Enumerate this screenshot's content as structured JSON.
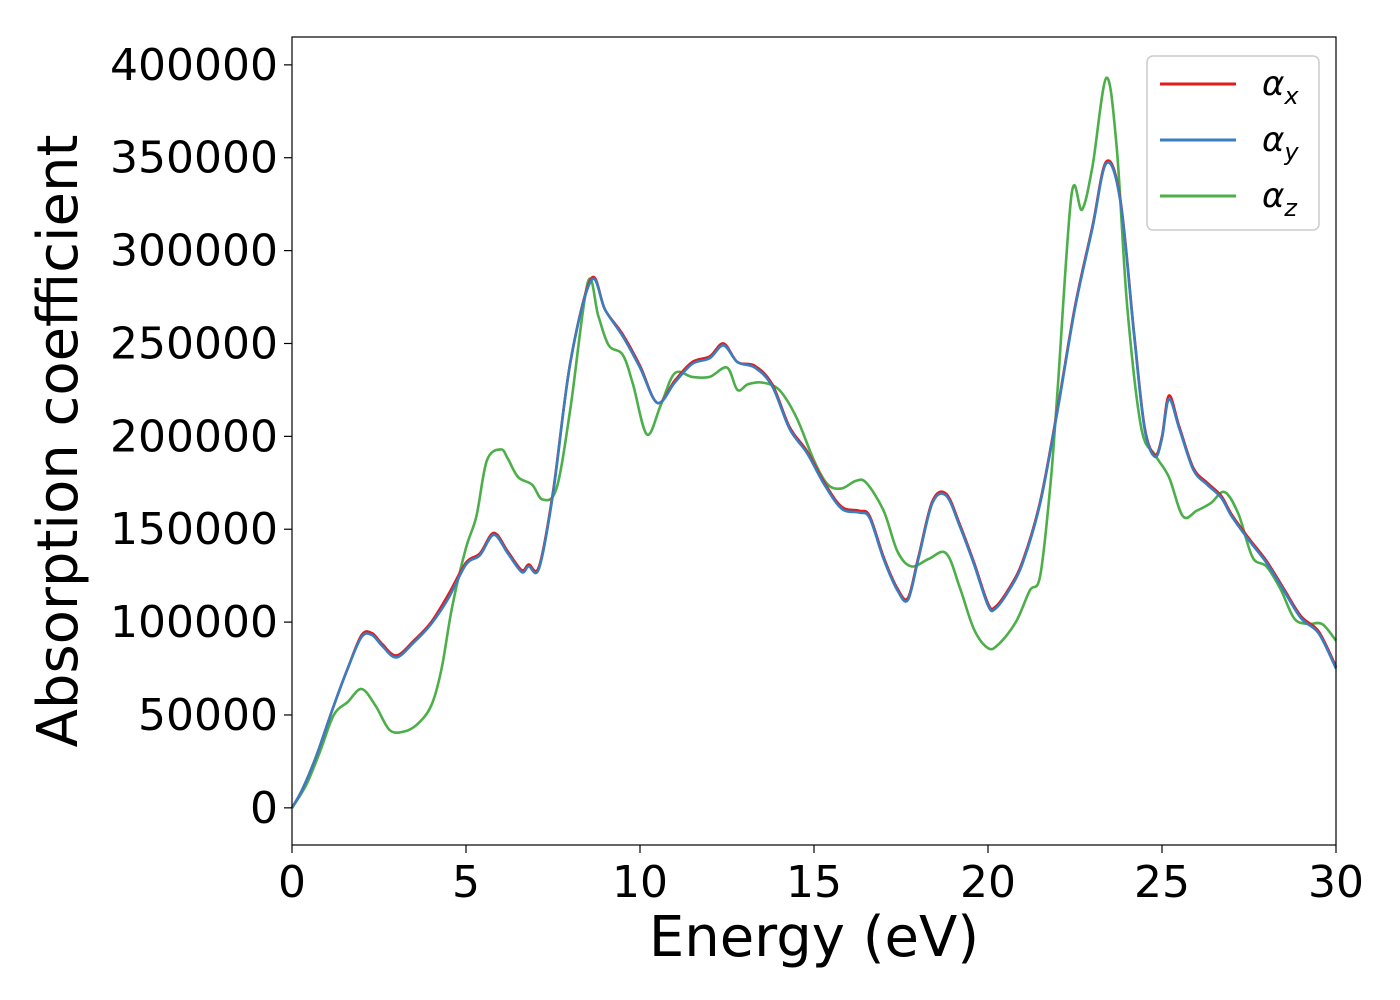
{
  "chart_data": {
    "type": "line",
    "xlabel": "Energy (eV)",
    "ylabel": "Absorption coefficient",
    "xlim": [
      0,
      30
    ],
    "ylim": [
      -20000,
      415000
    ],
    "xticks": [
      0,
      5,
      10,
      15,
      20,
      25,
      30
    ],
    "xtick_labels": [
      "0",
      "5",
      "10",
      "15",
      "20",
      "25",
      "30"
    ],
    "yticks": [
      0,
      50000,
      100000,
      150000,
      200000,
      250000,
      300000,
      350000,
      400000
    ],
    "ytick_labels": [
      "0",
      "50000",
      "100000",
      "150000",
      "200000",
      "250000",
      "300000",
      "350000",
      "400000"
    ],
    "grid": false,
    "legend_position": "top-right",
    "series": [
      {
        "name": "α_x",
        "legend_main": "α",
        "legend_sub": "x",
        "color": "#e41a1c",
        "x": [
          0,
          0.3,
          0.7,
          1.2,
          1.6,
          2.0,
          2.3,
          2.6,
          3.0,
          3.5,
          4.0,
          4.5,
          5.0,
          5.4,
          5.8,
          6.2,
          6.6,
          6.8,
          7.1,
          7.5,
          8.0,
          8.6,
          9.0,
          9.5,
          10.0,
          10.5,
          11.0,
          11.5,
          12.0,
          12.4,
          12.8,
          13.3,
          13.8,
          14.3,
          14.8,
          15.3,
          15.8,
          16.3,
          16.6,
          17.0,
          17.4,
          17.7,
          18.0,
          18.4,
          18.8,
          19.2,
          19.6,
          20.0,
          20.2,
          20.6,
          21.0,
          21.5,
          22.0,
          22.5,
          23.0,
          23.4,
          23.8,
          24.2,
          24.5,
          24.8,
          25.0,
          25.2,
          25.5,
          25.9,
          26.3,
          26.7,
          27.0,
          27.5,
          28.0,
          28.5,
          29.0,
          29.5,
          30.0
        ],
        "y": [
          0,
          10000,
          28000,
          55000,
          75000,
          93000,
          94000,
          88000,
          82000,
          90000,
          100000,
          115000,
          132000,
          137000,
          148000,
          138000,
          128000,
          131000,
          130000,
          170000,
          240000,
          285000,
          268000,
          255000,
          238000,
          218000,
          230000,
          240000,
          243000,
          250000,
          240000,
          238000,
          228000,
          205000,
          192000,
          175000,
          162000,
          160000,
          157000,
          135000,
          118000,
          113000,
          135000,
          165000,
          169000,
          152000,
          132000,
          110000,
          108000,
          118000,
          133000,
          165000,
          215000,
          270000,
          313000,
          348000,
          328000,
          255000,
          205000,
          190000,
          200000,
          222000,
          205000,
          183000,
          175000,
          168000,
          158000,
          145000,
          133000,
          118000,
          103000,
          95000,
          76000
        ]
      },
      {
        "name": "α_y",
        "legend_main": "α",
        "legend_sub": "y",
        "color": "#3a7ebf",
        "x": [
          0,
          0.3,
          0.7,
          1.2,
          1.6,
          2.0,
          2.3,
          2.6,
          3.0,
          3.5,
          4.0,
          4.5,
          5.0,
          5.4,
          5.8,
          6.2,
          6.6,
          6.8,
          7.1,
          7.5,
          8.0,
          8.6,
          9.0,
          9.5,
          10.0,
          10.5,
          11.0,
          11.5,
          12.0,
          12.4,
          12.8,
          13.3,
          13.8,
          14.3,
          14.8,
          15.3,
          15.8,
          16.3,
          16.6,
          17.0,
          17.4,
          17.7,
          18.0,
          18.4,
          18.8,
          19.2,
          19.6,
          20.0,
          20.2,
          20.6,
          21.0,
          21.5,
          22.0,
          22.5,
          23.0,
          23.4,
          23.8,
          24.2,
          24.5,
          24.8,
          25.0,
          25.2,
          25.5,
          25.9,
          26.3,
          26.7,
          27.0,
          27.5,
          28.0,
          28.5,
          29.0,
          29.5,
          30.0
        ],
        "y": [
          0,
          10000,
          28000,
          55000,
          75000,
          92000,
          93000,
          87000,
          81000,
          89000,
          99000,
          113000,
          131000,
          136000,
          147000,
          137000,
          127000,
          130000,
          129000,
          169000,
          240000,
          284000,
          268000,
          254000,
          237000,
          218000,
          229000,
          239000,
          242000,
          249000,
          240000,
          237000,
          227000,
          204000,
          191000,
          174000,
          161000,
          159000,
          156000,
          134000,
          117000,
          112000,
          134000,
          164000,
          168000,
          151000,
          131000,
          109000,
          107000,
          117000,
          132000,
          164000,
          214000,
          269000,
          312000,
          347000,
          327000,
          254000,
          204000,
          189000,
          199000,
          220000,
          204000,
          182000,
          174000,
          167000,
          157000,
          144000,
          132000,
          117000,
          102000,
          94000,
          75000
        ]
      },
      {
        "name": "α_z",
        "legend_main": "α",
        "legend_sub": "z",
        "color": "#4daf4a",
        "x": [
          0,
          0.4,
          0.8,
          1.2,
          1.6,
          2.0,
          2.4,
          2.8,
          3.2,
          3.6,
          4.0,
          4.3,
          4.6,
          5.0,
          5.3,
          5.6,
          6.0,
          6.2,
          6.5,
          6.9,
          7.2,
          7.6,
          8.0,
          8.5,
          8.8,
          9.1,
          9.5,
          9.8,
          10.2,
          10.6,
          11.0,
          11.5,
          12.0,
          12.5,
          12.8,
          13.1,
          13.5,
          14.0,
          14.5,
          15.0,
          15.4,
          15.8,
          16.2,
          16.5,
          17.0,
          17.4,
          17.8,
          18.3,
          18.8,
          19.2,
          19.6,
          20.0,
          20.3,
          20.8,
          21.2,
          21.5,
          21.8,
          22.0,
          22.4,
          22.7,
          23.0,
          23.4,
          23.7,
          24.0,
          24.4,
          24.8,
          25.2,
          25.6,
          26.0,
          26.4,
          26.8,
          27.2,
          27.6,
          28.0,
          28.4,
          28.8,
          29.2,
          29.6,
          30.0
        ],
        "y": [
          0,
          12000,
          30000,
          50000,
          57000,
          64000,
          55000,
          42000,
          41000,
          45000,
          55000,
          75000,
          108000,
          140000,
          157000,
          187000,
          193000,
          188000,
          178000,
          174000,
          166000,
          172000,
          215000,
          283000,
          265000,
          249000,
          244000,
          228000,
          201000,
          217000,
          234000,
          232000,
          232000,
          237000,
          225000,
          228000,
          229000,
          225000,
          210000,
          187000,
          174000,
          172000,
          176000,
          175000,
          160000,
          138000,
          130000,
          134000,
          137000,
          118000,
          96000,
          86000,
          88000,
          100000,
          117000,
          125000,
          175000,
          225000,
          330000,
          322000,
          345000,
          393000,
          355000,
          270000,
          205000,
          190000,
          178000,
          157000,
          160000,
          164000,
          170000,
          158000,
          135000,
          130000,
          118000,
          102000,
          99000,
          99000,
          90000
        ]
      }
    ]
  }
}
